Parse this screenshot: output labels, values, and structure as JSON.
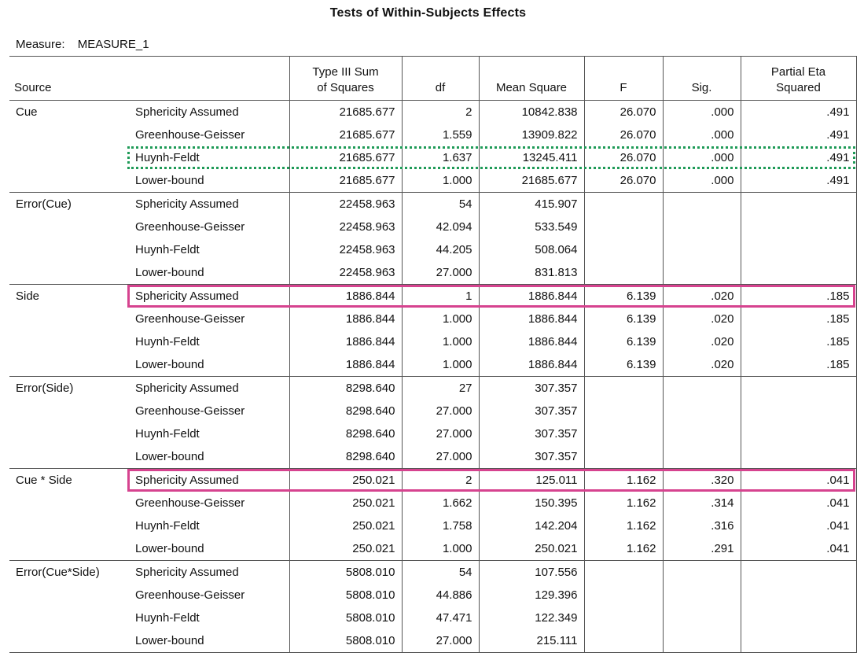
{
  "title": "Tests of Within-Subjects Effects",
  "measure_label": "Measure:",
  "measure_value": "MEASURE_1",
  "columns": [
    "Source",
    "",
    "Type III Sum of Squares",
    "df",
    "Mean Square",
    "F",
    "Sig.",
    "Partial Eta Squared"
  ],
  "header": {
    "source": "Source",
    "ss_line1": "Type III Sum",
    "ss_line2": "of Squares",
    "df": "df",
    "ms": "Mean Square",
    "f": "F",
    "sig": "Sig.",
    "eta_line1": "Partial Eta",
    "eta_line2": "Squared"
  },
  "highlight_colors": {
    "dotted_box": "#1e9a57",
    "solid_box": "#d6438f"
  },
  "chart_data": {
    "type": "table",
    "title": "Tests of Within-Subjects Effects",
    "measure": "MEASURE_1",
    "columns": [
      "Source",
      "",
      "Type III Sum of Squares",
      "df",
      "Mean Square",
      "F",
      "Sig.",
      "Partial Eta Squared"
    ],
    "groups": [
      {
        "source": "Cue",
        "rows": [
          {
            "corr": "Sphericity Assumed",
            "ss": "21685.677",
            "df": "2",
            "ms": "10842.838",
            "f": "26.070",
            "sig": ".000",
            "eta": ".491"
          },
          {
            "corr": "Greenhouse-Geisser",
            "ss": "21685.677",
            "df": "1.559",
            "ms": "13909.822",
            "f": "26.070",
            "sig": ".000",
            "eta": ".491"
          },
          {
            "corr": "Huynh-Feldt",
            "ss": "21685.677",
            "df": "1.637",
            "ms": "13245.411",
            "f": "26.070",
            "sig": ".000",
            "eta": ".491"
          },
          {
            "corr": "Lower-bound",
            "ss": "21685.677",
            "df": "1.000",
            "ms": "21685.677",
            "f": "26.070",
            "sig": ".000",
            "eta": ".491"
          }
        ]
      },
      {
        "source": "Error(Cue)",
        "rows": [
          {
            "corr": "Sphericity Assumed",
            "ss": "22458.963",
            "df": "54",
            "ms": "415.907",
            "f": "",
            "sig": "",
            "eta": ""
          },
          {
            "corr": "Greenhouse-Geisser",
            "ss": "22458.963",
            "df": "42.094",
            "ms": "533.549",
            "f": "",
            "sig": "",
            "eta": ""
          },
          {
            "corr": "Huynh-Feldt",
            "ss": "22458.963",
            "df": "44.205",
            "ms": "508.064",
            "f": "",
            "sig": "",
            "eta": ""
          },
          {
            "corr": "Lower-bound",
            "ss": "22458.963",
            "df": "27.000",
            "ms": "831.813",
            "f": "",
            "sig": "",
            "eta": ""
          }
        ]
      },
      {
        "source": "Side",
        "rows": [
          {
            "corr": "Sphericity Assumed",
            "ss": "1886.844",
            "df": "1",
            "ms": "1886.844",
            "f": "6.139",
            "sig": ".020",
            "eta": ".185"
          },
          {
            "corr": "Greenhouse-Geisser",
            "ss": "1886.844",
            "df": "1.000",
            "ms": "1886.844",
            "f": "6.139",
            "sig": ".020",
            "eta": ".185"
          },
          {
            "corr": "Huynh-Feldt",
            "ss": "1886.844",
            "df": "1.000",
            "ms": "1886.844",
            "f": "6.139",
            "sig": ".020",
            "eta": ".185"
          },
          {
            "corr": "Lower-bound",
            "ss": "1886.844",
            "df": "1.000",
            "ms": "1886.844",
            "f": "6.139",
            "sig": ".020",
            "eta": ".185"
          }
        ]
      },
      {
        "source": "Error(Side)",
        "rows": [
          {
            "corr": "Sphericity Assumed",
            "ss": "8298.640",
            "df": "27",
            "ms": "307.357",
            "f": "",
            "sig": "",
            "eta": ""
          },
          {
            "corr": "Greenhouse-Geisser",
            "ss": "8298.640",
            "df": "27.000",
            "ms": "307.357",
            "f": "",
            "sig": "",
            "eta": ""
          },
          {
            "corr": "Huynh-Feldt",
            "ss": "8298.640",
            "df": "27.000",
            "ms": "307.357",
            "f": "",
            "sig": "",
            "eta": ""
          },
          {
            "corr": "Lower-bound",
            "ss": "8298.640",
            "df": "27.000",
            "ms": "307.357",
            "f": "",
            "sig": "",
            "eta": ""
          }
        ]
      },
      {
        "source": "Cue * Side",
        "rows": [
          {
            "corr": "Sphericity Assumed",
            "ss": "250.021",
            "df": "2",
            "ms": "125.011",
            "f": "1.162",
            "sig": ".320",
            "eta": ".041"
          },
          {
            "corr": "Greenhouse-Geisser",
            "ss": "250.021",
            "df": "1.662",
            "ms": "150.395",
            "f": "1.162",
            "sig": ".314",
            "eta": ".041"
          },
          {
            "corr": "Huynh-Feldt",
            "ss": "250.021",
            "df": "1.758",
            "ms": "142.204",
            "f": "1.162",
            "sig": ".316",
            "eta": ".041"
          },
          {
            "corr": "Lower-bound",
            "ss": "250.021",
            "df": "1.000",
            "ms": "250.021",
            "f": "1.162",
            "sig": ".291",
            "eta": ".041"
          }
        ]
      },
      {
        "source": "Error(Cue*Side)",
        "rows": [
          {
            "corr": "Sphericity Assumed",
            "ss": "5808.010",
            "df": "54",
            "ms": "107.556",
            "f": "",
            "sig": "",
            "eta": ""
          },
          {
            "corr": "Greenhouse-Geisser",
            "ss": "5808.010",
            "df": "44.886",
            "ms": "129.396",
            "f": "",
            "sig": "",
            "eta": ""
          },
          {
            "corr": "Huynh-Feldt",
            "ss": "5808.010",
            "df": "47.471",
            "ms": "122.349",
            "f": "",
            "sig": "",
            "eta": ""
          },
          {
            "corr": "Lower-bound",
            "ss": "5808.010",
            "df": "27.000",
            "ms": "215.111",
            "f": "",
            "sig": "",
            "eta": ""
          }
        ]
      }
    ],
    "highlights": [
      {
        "style": "dotted",
        "color": "green",
        "group": "Cue",
        "row": "Huynh-Feldt"
      },
      {
        "style": "solid",
        "color": "pink",
        "group": "Side",
        "row": "Sphericity Assumed"
      },
      {
        "style": "solid",
        "color": "pink",
        "group": "Cue * Side",
        "row": "Sphericity Assumed"
      }
    ]
  }
}
